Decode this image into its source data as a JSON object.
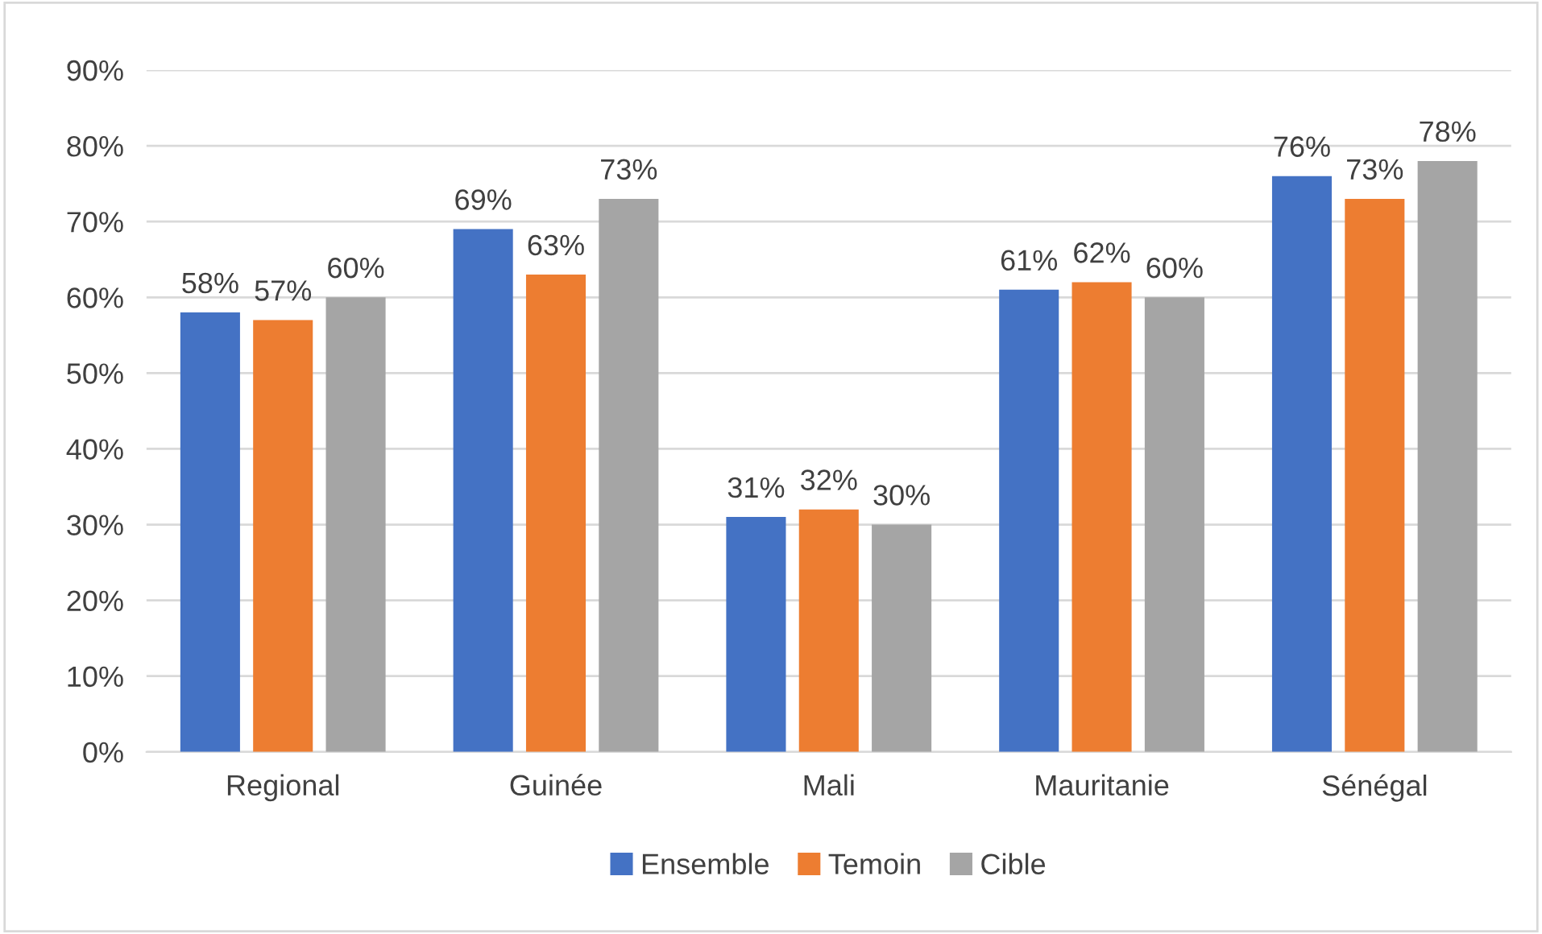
{
  "chart_data": {
    "type": "bar",
    "categories": [
      "Regional",
      "Guinée",
      "Mali",
      "Mauritanie",
      "Sénégal"
    ],
    "series": [
      {
        "name": "Ensemble",
        "color": "#4472c4",
        "values": [
          58,
          69,
          31,
          61,
          76
        ],
        "value_labels": [
          "58%",
          "69%",
          "31%",
          "61%",
          "76%"
        ]
      },
      {
        "name": "Temoin",
        "color": "#ed7d31",
        "values": [
          57,
          63,
          32,
          62,
          73
        ],
        "value_labels": [
          "57%",
          "63%",
          "32%",
          "62%",
          "73%"
        ]
      },
      {
        "name": "Cible",
        "color": "#a5a5a5",
        "values": [
          60,
          73,
          30,
          60,
          78
        ],
        "value_labels": [
          "60%",
          "73%",
          "30%",
          "60%",
          "78%"
        ]
      }
    ],
    "ylim": [
      0,
      90
    ],
    "yticks": [
      {
        "value": 0,
        "label": "0%"
      },
      {
        "value": 10,
        "label": "10%"
      },
      {
        "value": 20,
        "label": "20%"
      },
      {
        "value": 30,
        "label": "30%"
      },
      {
        "value": 40,
        "label": "40%"
      },
      {
        "value": 50,
        "label": "50%"
      },
      {
        "value": 60,
        "label": "60%"
      },
      {
        "value": 70,
        "label": "70%"
      },
      {
        "value": 80,
        "label": "80%"
      },
      {
        "value": 90,
        "label": "90%"
      }
    ],
    "grid": "y",
    "legend": "bottom"
  }
}
